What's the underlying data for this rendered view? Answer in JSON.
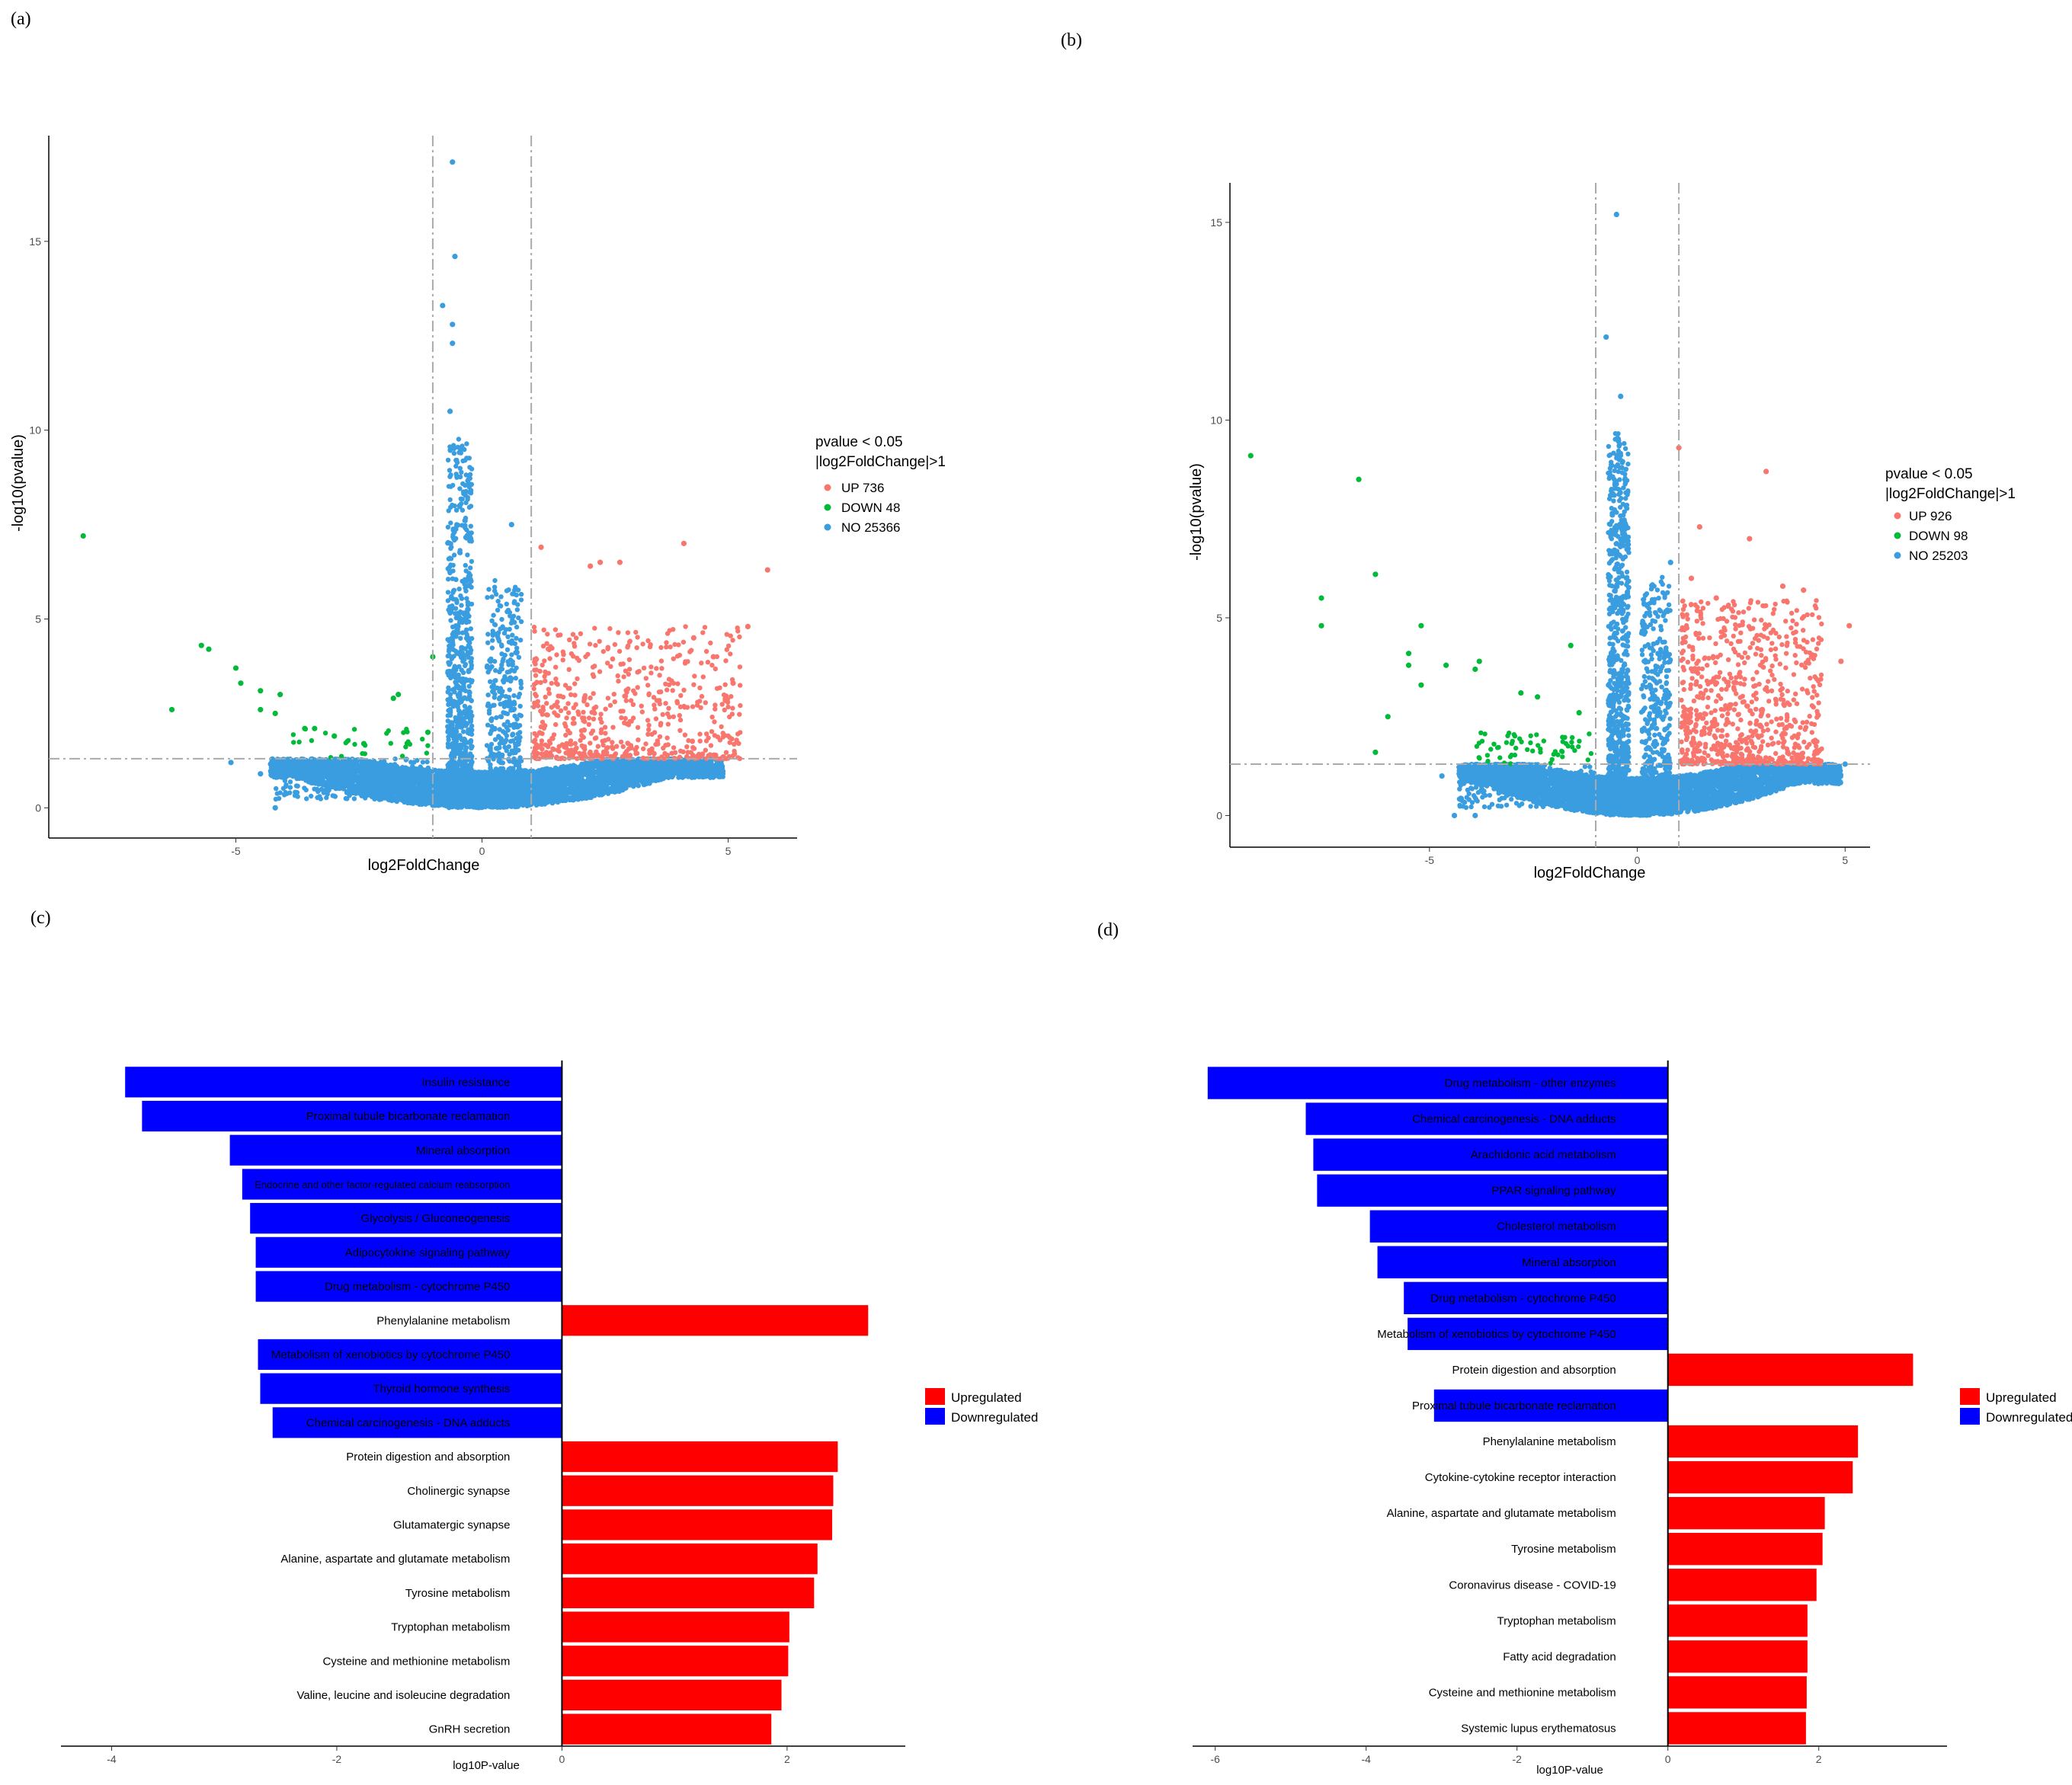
{
  "colors": {
    "up": "#f8766d",
    "down": "#00ba38",
    "no": "#3a9de0",
    "upregulated_bar": "#ff0000",
    "downregulated_bar": "#0000ff",
    "threshold_line": "#aaaaaa"
  },
  "chart_data": [
    {
      "panel": "(a)",
      "type": "scatter",
      "subtype": "volcano",
      "xlabel": "log2FoldChange",
      "ylabel": "-log10(pvalue)",
      "xlim": [
        -8.8,
        6.4
      ],
      "ylim": [
        -0.8,
        17.8
      ],
      "xticks": [
        -5,
        0,
        5
      ],
      "yticks": [
        0,
        5,
        10,
        15
      ],
      "thresholds": {
        "log2fc": [
          -1,
          1
        ],
        "neg_log10_p": 1.3
      },
      "legend": {
        "title_lines": [
          "pvalue < 0.05",
          "|log2FoldChange|>1"
        ],
        "entries": [
          {
            "label": "UP 736",
            "group": "up"
          },
          {
            "label": "DOWN 48",
            "group": "down"
          },
          {
            "label": "NO 25366",
            "group": "no"
          }
        ]
      },
      "highlighted_points": [
        {
          "x": -0.6,
          "y": 17.1,
          "group": "no"
        },
        {
          "x": -0.55,
          "y": 14.6,
          "group": "no"
        },
        {
          "x": -0.8,
          "y": 13.3,
          "group": "no"
        },
        {
          "x": -0.6,
          "y": 12.8,
          "group": "no"
        },
        {
          "x": -0.6,
          "y": 12.3,
          "group": "no"
        },
        {
          "x": -0.65,
          "y": 10.5,
          "group": "no"
        },
        {
          "x": 0.6,
          "y": 7.5,
          "group": "no"
        },
        {
          "x": -5.1,
          "y": 1.2,
          "group": "no"
        },
        {
          "x": -4.5,
          "y": 0.9,
          "group": "no"
        },
        {
          "x": -4.2,
          "y": 0.0,
          "group": "no"
        },
        {
          "x": -8.1,
          "y": 7.2,
          "group": "down"
        },
        {
          "x": -6.3,
          "y": 2.6,
          "group": "down"
        },
        {
          "x": -5.7,
          "y": 4.3,
          "group": "down"
        },
        {
          "x": -5.55,
          "y": 4.2,
          "group": "down"
        },
        {
          "x": -5.0,
          "y": 3.7,
          "group": "down"
        },
        {
          "x": -4.9,
          "y": 3.3,
          "group": "down"
        },
        {
          "x": -4.5,
          "y": 3.1,
          "group": "down"
        },
        {
          "x": -4.1,
          "y": 3.0,
          "group": "down"
        },
        {
          "x": -4.5,
          "y": 2.6,
          "group": "down"
        },
        {
          "x": -4.2,
          "y": 2.5,
          "group": "down"
        },
        {
          "x": -3.6,
          "y": 2.1,
          "group": "down"
        },
        {
          "x": -3.4,
          "y": 2.1,
          "group": "down"
        },
        {
          "x": -3.0,
          "y": 1.9,
          "group": "down"
        },
        {
          "x": -2.4,
          "y": 1.7,
          "group": "down"
        },
        {
          "x": -1.7,
          "y": 3.0,
          "group": "down"
        },
        {
          "x": -1.8,
          "y": 2.9,
          "group": "down"
        },
        {
          "x": -1.1,
          "y": 2.0,
          "group": "down"
        },
        {
          "x": -1.0,
          "y": 4.0,
          "group": "down"
        },
        {
          "x": 1.2,
          "y": 6.9,
          "group": "up"
        },
        {
          "x": 4.1,
          "y": 7.0,
          "group": "up"
        },
        {
          "x": 5.8,
          "y": 6.3,
          "group": "up"
        },
        {
          "x": 5.4,
          "y": 4.8,
          "group": "up"
        },
        {
          "x": 2.2,
          "y": 6.4,
          "group": "up"
        },
        {
          "x": 2.4,
          "y": 6.5,
          "group": "up"
        },
        {
          "x": 2.8,
          "y": 6.5,
          "group": "up"
        },
        {
          "x": 4.7,
          "y": 4.0,
          "group": "up"
        },
        {
          "x": 5.1,
          "y": 3.3,
          "group": "up"
        },
        {
          "x": 4.3,
          "y": 4.5,
          "group": "up"
        }
      ]
    },
    {
      "panel": "(b)",
      "type": "scatter",
      "subtype": "volcano",
      "xlabel": "log2FoldChange",
      "ylabel": "-log10(pvalue)",
      "xlim": [
        -9.8,
        5.6
      ],
      "ylim": [
        -0.8,
        16.0
      ],
      "xticks": [
        -5,
        0,
        5
      ],
      "yticks": [
        0,
        5,
        10,
        15
      ],
      "thresholds": {
        "log2fc": [
          -1,
          1
        ],
        "neg_log10_p": 1.3
      },
      "legend": {
        "title_lines": [
          "pvalue < 0.05",
          "|log2FoldChange|>1"
        ],
        "entries": [
          {
            "label": "UP 926",
            "group": "up"
          },
          {
            "label": "DOWN 98",
            "group": "down"
          },
          {
            "label": "NO 25203",
            "group": "no"
          }
        ]
      },
      "highlighted_points": [
        {
          "x": -0.5,
          "y": 15.2,
          "group": "no"
        },
        {
          "x": -0.75,
          "y": 12.1,
          "group": "no"
        },
        {
          "x": -0.4,
          "y": 10.6,
          "group": "no"
        },
        {
          "x": -0.6,
          "y": 7.6,
          "group": "no"
        },
        {
          "x": -0.4,
          "y": 7.3,
          "group": "no"
        },
        {
          "x": 0.8,
          "y": 6.4,
          "group": "no"
        },
        {
          "x": -4.4,
          "y": 0.0,
          "group": "no"
        },
        {
          "x": -3.9,
          "y": 0.0,
          "group": "no"
        },
        {
          "x": -4.7,
          "y": 1.0,
          "group": "no"
        },
        {
          "x": 5.0,
          "y": 1.3,
          "group": "no"
        },
        {
          "x": -9.3,
          "y": 9.1,
          "group": "down"
        },
        {
          "x": -6.7,
          "y": 8.5,
          "group": "down"
        },
        {
          "x": -7.6,
          "y": 5.5,
          "group": "down"
        },
        {
          "x": -7.6,
          "y": 4.8,
          "group": "down"
        },
        {
          "x": -6.3,
          "y": 6.1,
          "group": "down"
        },
        {
          "x": -5.2,
          "y": 4.8,
          "group": "down"
        },
        {
          "x": -5.5,
          "y": 4.1,
          "group": "down"
        },
        {
          "x": -5.5,
          "y": 3.8,
          "group": "down"
        },
        {
          "x": -4.6,
          "y": 3.8,
          "group": "down"
        },
        {
          "x": -3.8,
          "y": 3.9,
          "group": "down"
        },
        {
          "x": -3.9,
          "y": 3.7,
          "group": "down"
        },
        {
          "x": -5.2,
          "y": 3.3,
          "group": "down"
        },
        {
          "x": -6.0,
          "y": 2.5,
          "group": "down"
        },
        {
          "x": -6.3,
          "y": 1.6,
          "group": "down"
        },
        {
          "x": -2.8,
          "y": 3.1,
          "group": "down"
        },
        {
          "x": -2.4,
          "y": 3.0,
          "group": "down"
        },
        {
          "x": -1.6,
          "y": 4.3,
          "group": "down"
        },
        {
          "x": -1.4,
          "y": 2.6,
          "group": "down"
        },
        {
          "x": 1.0,
          "y": 9.3,
          "group": "up"
        },
        {
          "x": 3.1,
          "y": 8.7,
          "group": "up"
        },
        {
          "x": 1.5,
          "y": 7.3,
          "group": "up"
        },
        {
          "x": 2.7,
          "y": 7.0,
          "group": "up"
        },
        {
          "x": 1.3,
          "y": 6.0,
          "group": "up"
        },
        {
          "x": 3.5,
          "y": 5.8,
          "group": "up"
        },
        {
          "x": 4.0,
          "y": 5.7,
          "group": "up"
        },
        {
          "x": 5.1,
          "y": 4.8,
          "group": "up"
        },
        {
          "x": 4.9,
          "y": 3.9,
          "group": "up"
        },
        {
          "x": 1.9,
          "y": 5.5,
          "group": "up"
        }
      ]
    },
    {
      "panel": "(c)",
      "type": "bar",
      "orientation": "horizontal",
      "xlabel": "log10P-value",
      "xlim": [
        -4.45,
        3.05
      ],
      "xticks": [
        -4,
        -2,
        0,
        2
      ],
      "legend": [
        {
          "label": "Upregulated",
          "direction": "up"
        },
        {
          "label": "Downregulated",
          "direction": "down"
        }
      ],
      "bars": [
        {
          "label": "Insulin resistance",
          "value": -3.88
        },
        {
          "label": "Proximal tubule bicarbonate reclamation",
          "value": -3.73
        },
        {
          "label": "Mineral absorption",
          "value": -2.95
        },
        {
          "label": "Endocrine and other factor-regulated calcium reabsorption",
          "value": -2.84
        },
        {
          "label": "Glycolysis / Gluconeogenesis",
          "value": -2.77
        },
        {
          "label": "Adipocytokine signaling pathway",
          "value": -2.72
        },
        {
          "label": "Drug metabolism - cytochrome P450",
          "value": -2.72
        },
        {
          "label": "Phenylalanine metabolism",
          "value": 2.72
        },
        {
          "label": "Metabolism of xenobiotics by cytochrome P450",
          "value": -2.7
        },
        {
          "label": "Thyroid hormone synthesis",
          "value": -2.68
        },
        {
          "label": "Chemical carcinogenesis - DNA adducts",
          "value": -2.57
        },
        {
          "label": "Protein digestion and absorption",
          "value": 2.45
        },
        {
          "label": "Cholinergic synapse",
          "value": 2.41
        },
        {
          "label": "Glutamatergic synapse",
          "value": 2.4
        },
        {
          "label": "Alanine, aspartate and glutamate metabolism",
          "value": 2.27
        },
        {
          "label": "Tyrosine metabolism",
          "value": 2.24
        },
        {
          "label": "Tryptophan metabolism",
          "value": 2.02
        },
        {
          "label": "Cysteine and methionine metabolism",
          "value": 2.01
        },
        {
          "label": "Valine, leucine and isoleucine degradation",
          "value": 1.95
        },
        {
          "label": "GnRH secretion",
          "value": 1.86
        }
      ]
    },
    {
      "panel": "(d)",
      "type": "bar",
      "orientation": "horizontal",
      "xlabel": "log10P-value",
      "xlim": [
        -6.3,
        3.7
      ],
      "xticks": [
        -6,
        -4,
        -2,
        0,
        2
      ],
      "legend": [
        {
          "label": "Upregulated",
          "direction": "up"
        },
        {
          "label": "Downregulated",
          "direction": "down"
        }
      ],
      "bars": [
        {
          "label": "Drug metabolism - other enzymes",
          "value": -6.1
        },
        {
          "label": "Chemical carcinogenesis - DNA adducts",
          "value": -4.8
        },
        {
          "label": "Arachidonic acid metabolism",
          "value": -4.7
        },
        {
          "label": "PPAR signaling pathway",
          "value": -4.65
        },
        {
          "label": "Cholesterol metabolism",
          "value": -3.95
        },
        {
          "label": "Mineral absorption",
          "value": -3.85
        },
        {
          "label": "Drug metabolism - cytochrome P450",
          "value": -3.5
        },
        {
          "label": "Metabolism of xenobiotics by cytochrome P450",
          "value": -3.45
        },
        {
          "label": "Protein digestion and absorption",
          "value": 3.25
        },
        {
          "label": "Proximal tubule bicarbonate reclamation",
          "value": -3.1
        },
        {
          "label": "Phenylalanine metabolism",
          "value": 2.52
        },
        {
          "label": "Cytokine-cytokine receptor interaction",
          "value": 2.45
        },
        {
          "label": "Alanine, aspartate and glutamate metabolism",
          "value": 2.08
        },
        {
          "label": "Tyrosine metabolism",
          "value": 2.05
        },
        {
          "label": "Coronavirus disease - COVID-19",
          "value": 1.97
        },
        {
          "label": "Tryptophan metabolism",
          "value": 1.85
        },
        {
          "label": "Fatty acid degradation",
          "value": 1.85
        },
        {
          "label": "Cysteine and methionine metabolism",
          "value": 1.84
        },
        {
          "label": "Systemic lupus erythematosus",
          "value": 1.83
        }
      ]
    }
  ]
}
